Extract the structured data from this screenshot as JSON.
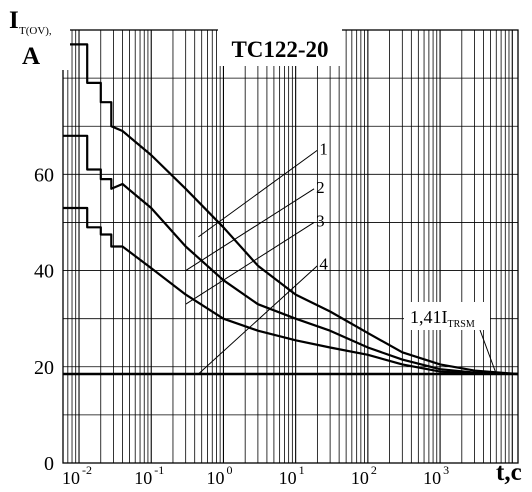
{
  "chart_data": {
    "type": "line",
    "title": "TC122-20",
    "ylabel_main": "I",
    "ylabel_sub": "T(OV),",
    "ylabel_unit": "A",
    "xlabel": "t,c",
    "x_scale": "log",
    "xlim": [
      0.006,
      12000
    ],
    "ylim": [
      0,
      90
    ],
    "grid": true,
    "y_ticks": [
      {
        "value": 0,
        "label": "0"
      },
      {
        "value": 20,
        "label": "20"
      },
      {
        "value": 40,
        "label": "40"
      },
      {
        "value": 60,
        "label": "60"
      }
    ],
    "x_ticks": [
      {
        "value": 0.01,
        "base": "10",
        "exp": "-2"
      },
      {
        "value": 0.1,
        "base": "10",
        "exp": "-1"
      },
      {
        "value": 1,
        "base": "10",
        "exp": "0"
      },
      {
        "value": 10,
        "base": "10",
        "exp": "1"
      },
      {
        "value": 100,
        "base": "10",
        "exp": "2"
      },
      {
        "value": 1000,
        "base": "10",
        "exp": "3"
      }
    ],
    "reference_line": {
      "value": 18.5,
      "label_prefix": "1,41I",
      "label_sub": "TRSM",
      "pointer_end": {
        "x": 6000,
        "y": 18.5
      }
    },
    "curve_labels": [
      {
        "label": "1",
        "pointer": [
          {
            "x": 0.45,
            "y": 47
          },
          {
            "x": 20,
            "y": 65
          }
        ]
      },
      {
        "label": "2",
        "pointer": [
          {
            "x": 0.3,
            "y": 40
          },
          {
            "x": 18,
            "y": 57
          }
        ]
      },
      {
        "label": "3",
        "pointer": [
          {
            "x": 0.3,
            "y": 33
          },
          {
            "x": 18,
            "y": 50
          }
        ]
      },
      {
        "label": "4",
        "pointer": [
          {
            "x": 0.45,
            "y": 18.5
          },
          {
            "x": 20,
            "y": 41
          }
        ]
      }
    ],
    "series": [
      {
        "steps": [
          [
            0.006,
            87
          ],
          [
            0.013,
            87
          ],
          [
            0.013,
            79
          ],
          [
            0.02,
            79
          ],
          [
            0.02,
            75
          ],
          [
            0.028,
            75
          ],
          [
            0.028,
            70
          ]
        ],
        "values": [
          [
            0.028,
            70
          ],
          [
            0.04,
            69
          ],
          [
            0.1,
            64
          ],
          [
            0.3,
            57
          ],
          [
            1,
            49
          ],
          [
            3,
            41
          ],
          [
            10,
            35
          ],
          [
            30,
            31.5
          ],
          [
            100,
            27
          ],
          [
            300,
            23
          ],
          [
            1000,
            20.5
          ],
          [
            3000,
            19.2
          ],
          [
            12000,
            18.5
          ]
        ]
      },
      {
        "steps": [
          [
            0.006,
            68
          ],
          [
            0.013,
            68
          ],
          [
            0.013,
            61
          ],
          [
            0.02,
            61
          ],
          [
            0.02,
            59
          ],
          [
            0.028,
            59
          ],
          [
            0.028,
            57
          ]
        ],
        "values": [
          [
            0.028,
            57
          ],
          [
            0.04,
            58
          ],
          [
            0.1,
            53
          ],
          [
            0.3,
            45
          ],
          [
            1,
            38
          ],
          [
            3,
            33
          ],
          [
            10,
            30
          ],
          [
            30,
            27.5
          ],
          [
            100,
            24
          ],
          [
            300,
            21.5
          ],
          [
            1000,
            19.5
          ],
          [
            3000,
            18.8
          ],
          [
            12000,
            18.5
          ]
        ]
      },
      {
        "steps": [
          [
            0.006,
            53
          ],
          [
            0.013,
            53
          ],
          [
            0.013,
            49
          ],
          [
            0.02,
            49
          ],
          [
            0.02,
            47.5
          ],
          [
            0.028,
            47.5
          ],
          [
            0.028,
            45
          ]
        ],
        "values": [
          [
            0.028,
            45
          ],
          [
            0.04,
            45
          ],
          [
            0.1,
            40.5
          ],
          [
            0.3,
            35
          ],
          [
            1,
            30
          ],
          [
            3,
            27.5
          ],
          [
            10,
            25.5
          ],
          [
            30,
            24
          ],
          [
            100,
            22.5
          ],
          [
            300,
            20.5
          ],
          [
            1000,
            19
          ],
          [
            3000,
            18.6
          ],
          [
            12000,
            18.5
          ]
        ]
      }
    ]
  }
}
